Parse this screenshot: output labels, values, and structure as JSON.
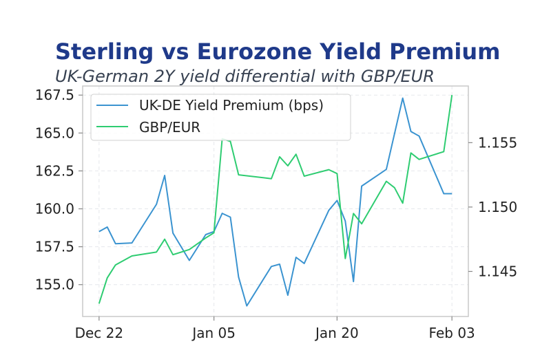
{
  "chart_data": {
    "type": "line",
    "title": "Sterling vs Eurozone Yield Premium",
    "subtitle": "UK-German 2Y yield differential with GBP/EUR",
    "xlabel": "",
    "ylabel": "",
    "grid": true,
    "legend_position": "top-left",
    "x_ticks": [
      "2024-12-22",
      "2025-01-05",
      "2025-01-20",
      "2025-02-03"
    ],
    "x_tick_labels": [
      "Dec 22",
      "Jan 05",
      "Jan 20",
      "Feb 03"
    ],
    "xlim": [
      "2024-12-20",
      "2025-02-05"
    ],
    "y_left": {
      "ticks": [
        155.0,
        157.5,
        160.0,
        162.5,
        165.0,
        167.5
      ],
      "tick_labels": [
        "155.0",
        "157.5",
        "160.0",
        "162.5",
        "165.0",
        "167.5"
      ],
      "lim": [
        152.9,
        168.1
      ]
    },
    "y_right": {
      "ticks": [
        1.145,
        1.15,
        1.155
      ],
      "tick_labels": [
        "1.145",
        "1.150",
        "1.155"
      ],
      "lim": [
        1.1415,
        1.1594
      ]
    },
    "series": [
      {
        "name": "UK-DE Yield Premium (bps)",
        "axis": "left",
        "color": "#3a93d0",
        "points": [
          [
            "2024-12-22",
            158.5
          ],
          [
            "2024-12-23",
            158.8
          ],
          [
            "2024-12-24",
            157.7
          ],
          [
            "2024-12-26",
            157.75
          ],
          [
            "2024-12-29",
            160.3
          ],
          [
            "2024-12-30",
            162.2
          ],
          [
            "2024-12-31",
            158.4
          ],
          [
            "2025-01-02",
            156.6
          ],
          [
            "2025-01-04",
            158.3
          ],
          [
            "2025-01-05",
            158.5
          ],
          [
            "2025-01-06",
            159.7
          ],
          [
            "2025-01-07",
            159.45
          ],
          [
            "2025-01-08",
            155.5
          ],
          [
            "2025-01-09",
            153.6
          ],
          [
            "2025-01-12",
            156.2
          ],
          [
            "2025-01-13",
            156.35
          ],
          [
            "2025-01-14",
            154.3
          ],
          [
            "2025-01-15",
            156.8
          ],
          [
            "2025-01-16",
            156.4
          ],
          [
            "2025-01-19",
            159.9
          ],
          [
            "2025-01-20",
            160.55
          ],
          [
            "2025-01-21",
            159.2
          ],
          [
            "2025-01-22",
            155.2
          ],
          [
            "2025-01-23",
            161.5
          ],
          [
            "2025-01-26",
            162.6
          ],
          [
            "2025-01-28",
            167.3
          ],
          [
            "2025-01-29",
            165.1
          ],
          [
            "2025-01-30",
            164.8
          ],
          [
            "2025-02-02",
            161.0
          ],
          [
            "2025-02-03",
            161.0
          ]
        ]
      },
      {
        "name": "GBP/EUR",
        "axis": "right",
        "color": "#2ecc71",
        "points": [
          [
            "2024-12-22",
            1.1425
          ],
          [
            "2024-12-23",
            1.1445
          ],
          [
            "2024-12-24",
            1.1455
          ],
          [
            "2024-12-26",
            1.1462
          ],
          [
            "2024-12-29",
            1.1465
          ],
          [
            "2024-12-30",
            1.1475
          ],
          [
            "2024-12-31",
            1.1463
          ],
          [
            "2025-01-02",
            1.1467
          ],
          [
            "2025-01-04",
            1.1476
          ],
          [
            "2025-01-05",
            1.148
          ],
          [
            "2025-01-06",
            1.1553
          ],
          [
            "2025-01-07",
            1.1551
          ],
          [
            "2025-01-08",
            1.1525
          ],
          [
            "2025-01-12",
            1.1522
          ],
          [
            "2025-01-13",
            1.1539
          ],
          [
            "2025-01-14",
            1.1532
          ],
          [
            "2025-01-15",
            1.1541
          ],
          [
            "2025-01-16",
            1.1524
          ],
          [
            "2025-01-19",
            1.1529
          ],
          [
            "2025-01-20",
            1.1526
          ],
          [
            "2025-01-21",
            1.146
          ],
          [
            "2025-01-22",
            1.1495
          ],
          [
            "2025-01-23",
            1.1487
          ],
          [
            "2025-01-26",
            1.152
          ],
          [
            "2025-01-27",
            1.1515
          ],
          [
            "2025-01-28",
            1.1503
          ],
          [
            "2025-01-29",
            1.1542
          ],
          [
            "2025-01-30",
            1.1537
          ],
          [
            "2025-02-02",
            1.1543
          ],
          [
            "2025-02-03",
            1.1587
          ]
        ]
      }
    ]
  }
}
